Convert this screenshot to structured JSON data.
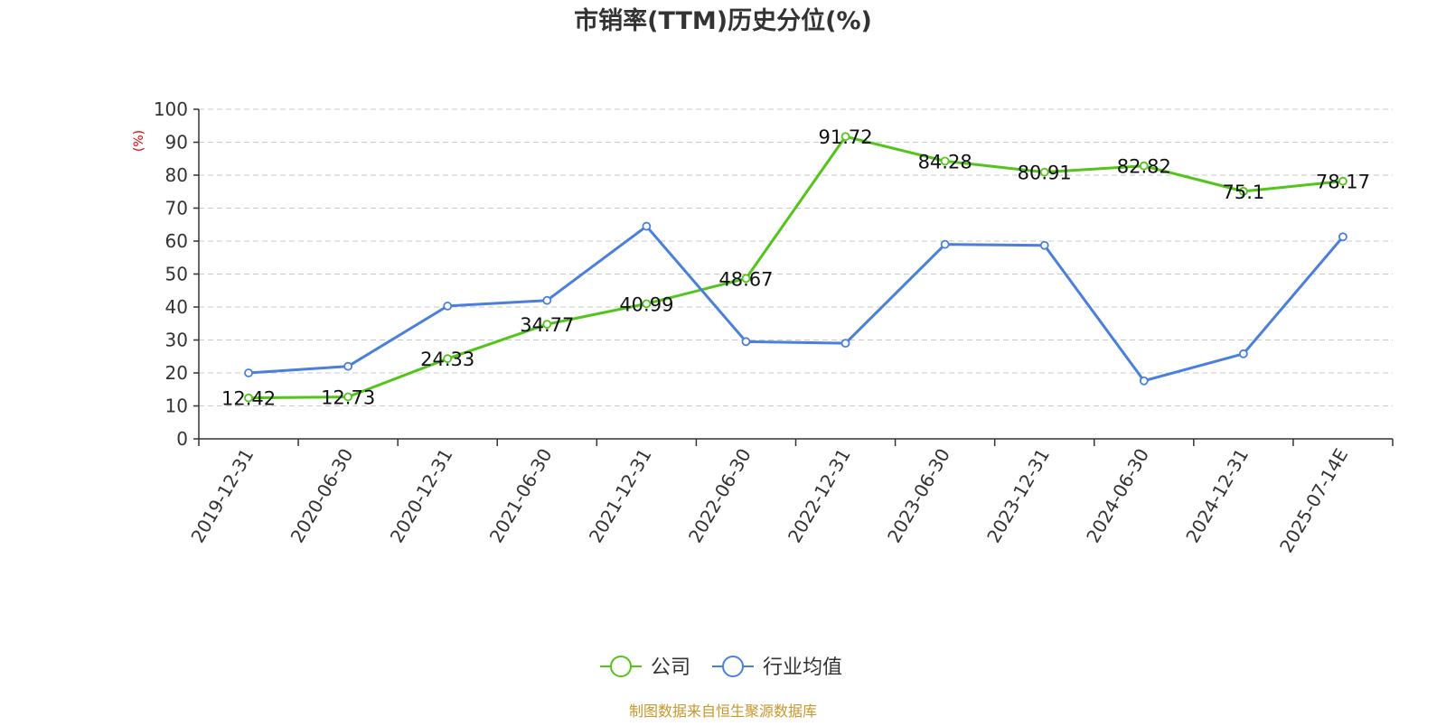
{
  "chart_data": {
    "type": "line",
    "title": "市销率(TTM)历史分位(%)",
    "ylabel": "(%)",
    "xlabel": "",
    "ylim": [
      0,
      100
    ],
    "y_ticks": [
      0,
      10,
      20,
      30,
      40,
      50,
      60,
      70,
      80,
      90,
      100
    ],
    "grid": true,
    "categories": [
      "2019-12-31",
      "2020-06-30",
      "2020-12-31",
      "2021-06-30",
      "2021-12-31",
      "2022-06-30",
      "2022-12-31",
      "2023-06-30",
      "2023-12-31",
      "2024-06-30",
      "2024-12-31",
      "2025-07-14E"
    ],
    "series": [
      {
        "name": "公司",
        "color": "#52c41a",
        "values": [
          12.42,
          12.73,
          24.33,
          34.77,
          40.99,
          48.67,
          91.72,
          84.28,
          80.91,
          82.82,
          75.1,
          78.17
        ],
        "labels": [
          "12.42",
          "12.73",
          "24.33",
          "34.77",
          "40.99",
          "48.67",
          "91.72",
          "84.28",
          "80.91",
          "82.82",
          "75.1",
          "78.17"
        ]
      },
      {
        "name": "行业均值",
        "color": "#4a7fdc",
        "values": [
          20.0,
          22.0,
          40.3,
          42.0,
          64.5,
          29.5,
          29.0,
          59.0,
          58.7,
          17.6,
          25.8,
          61.3
        ]
      }
    ],
    "legend_position": "bottom",
    "source": "制图数据来自恒生聚源数据库"
  }
}
